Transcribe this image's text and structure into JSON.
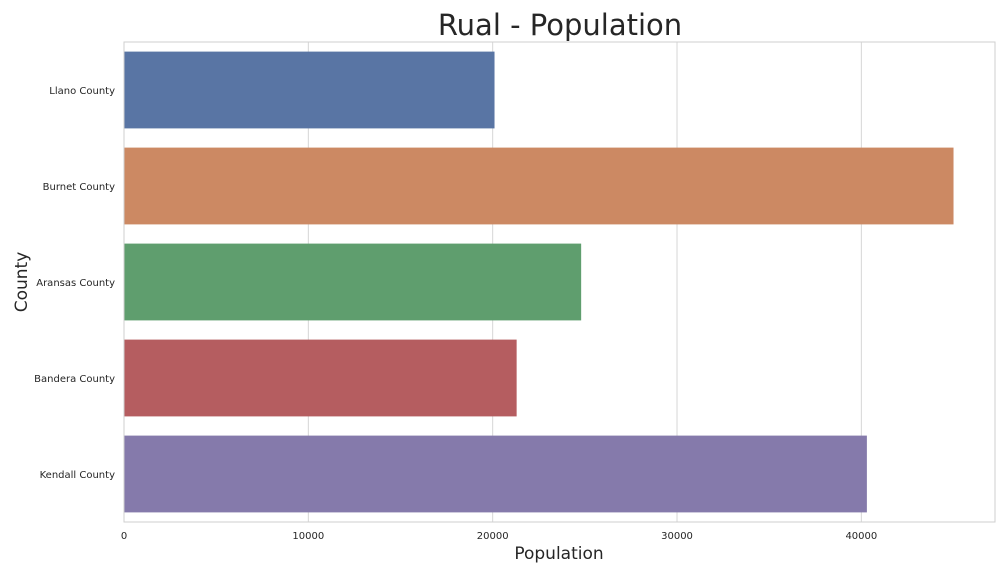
{
  "chart_data": {
    "type": "bar",
    "orientation": "horizontal",
    "title": "Rual - Population",
    "xlabel": "Population",
    "ylabel": "County",
    "categories": [
      "Llano County",
      "Burnet County",
      "Aransas County",
      "Bandera County",
      "Kendall County"
    ],
    "values": [
      20100,
      45000,
      24800,
      21300,
      40300
    ],
    "colors": [
      "#5975a4",
      "#cc8963",
      "#5f9e6e",
      "#b55d60",
      "#857aab"
    ],
    "xlim": [
      0,
      47250
    ],
    "xticks": [
      0,
      10000,
      20000,
      30000,
      40000
    ],
    "xtick_labels": [
      "0",
      "10000",
      "20000",
      "30000",
      "40000"
    ],
    "grid": "vertical",
    "legend": "none"
  }
}
